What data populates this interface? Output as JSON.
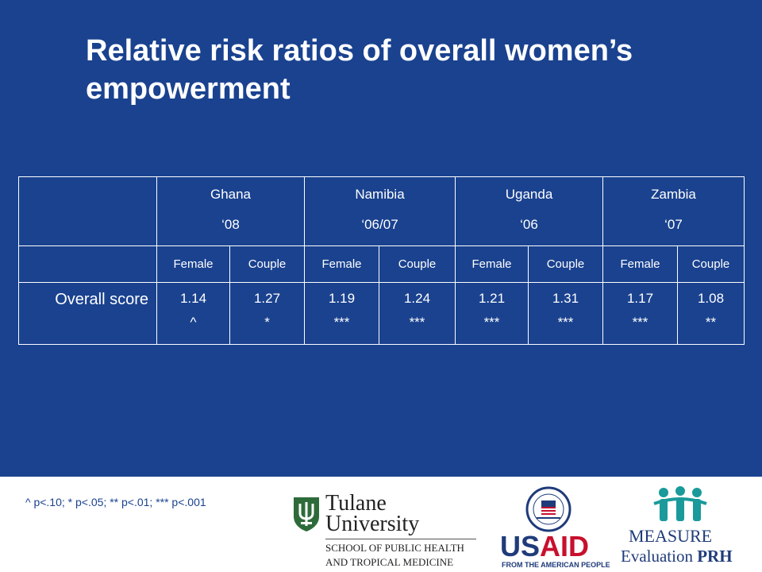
{
  "slide": {
    "title": "Relative risk ratios of overall women’s empowerment"
  },
  "table": {
    "countries": [
      {
        "name": "Ghana",
        "year": "‘08"
      },
      {
        "name": "Namibia",
        "year": "‘06/07"
      },
      {
        "name": "Uganda",
        "year": "‘06"
      },
      {
        "name": "Zambia",
        "year": "‘07"
      }
    ],
    "subheaders": [
      "Female",
      "Couple",
      "Female",
      "Couple",
      "Female",
      "Couple",
      "Female",
      "Couple"
    ],
    "row_label": "Overall score",
    "values": [
      "1.14",
      "1.27",
      "1.19",
      "1.24",
      "1.21",
      "1.31",
      "1.17",
      "1.08"
    ],
    "significance": [
      "^",
      "*",
      "***",
      "***",
      "***",
      "***",
      "***",
      "**"
    ]
  },
  "footer": {
    "note": "^ p<.10; * p<.05; ** p<.01; *** p<.001",
    "tulane": {
      "name_line1": "Tulane",
      "name_line2": "University",
      "school_line1": "SCHOOL OF PUBLIC HEALTH",
      "school_line2": "AND TROPICAL MEDICINE"
    },
    "usaid": {
      "us": "US",
      "aid": "AID",
      "tagline": "FROM THE AMERICAN PEOPLE"
    },
    "measure": {
      "line1": "MEASURE",
      "line2a": "Evaluation ",
      "line2b": "PRH"
    }
  },
  "colors": {
    "slide_background": "#1a428f",
    "text": "#ffffff",
    "usaid_blue": "#1f3b7a",
    "usaid_red": "#c8102e",
    "tulane_green": "#2e6b3a",
    "measure_teal": "#1a9a9a"
  }
}
